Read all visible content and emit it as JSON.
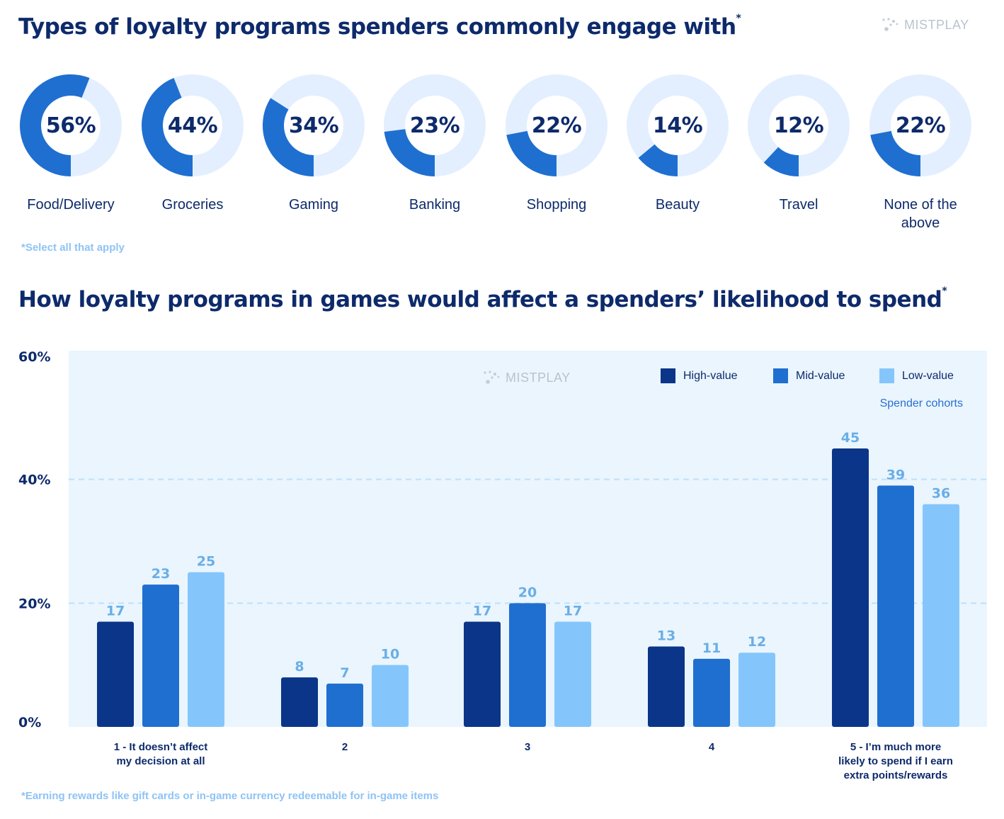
{
  "title_top": "Types of loyalty programs spenders commonly engage with",
  "title_top_mark": "*",
  "logo": "MISTPLAY",
  "colors": {
    "donut_fill": "#1f6fd0",
    "donut_track": "#e3efff",
    "high": "#0b3588",
    "mid": "#1f6fd0",
    "low": "#84c6fb",
    "plot_bg": "#eaf5fe",
    "value_label": "#6aaee6"
  },
  "donuts": [
    {
      "value": 56,
      "display": "56%",
      "label": "Food/Delivery"
    },
    {
      "value": 44,
      "display": "44%",
      "label": "Groceries"
    },
    {
      "value": 34,
      "display": "34%",
      "label": "Gaming"
    },
    {
      "value": 23,
      "display": "23%",
      "label": "Banking"
    },
    {
      "value": 22,
      "display": "22%",
      "label": "Shopping"
    },
    {
      "value": 14,
      "display": "14%",
      "label": "Beauty"
    },
    {
      "value": 12,
      "display": "12%",
      "label": "Travel"
    },
    {
      "value": 22,
      "display": "22%",
      "label": "None of the above"
    }
  ],
  "footnote_top": "*Select all that apply",
  "title_bottom": "How loyalty programs in games would affect a spenders’ likelihood to spend",
  "title_bottom_mark": "*",
  "legend": {
    "items": [
      "High-value",
      "Mid-value",
      "Low-value"
    ],
    "caption": "Spender cohorts"
  },
  "footnote_bottom": "*Earning rewards like gift cards or in-game currency redeemable for in-game items",
  "chart_data": {
    "type": "bar",
    "title": "How loyalty programs in games would affect a spenders’ likelihood to spend",
    "categories": [
      "1 - It doesn’t affect my decision at all",
      "2",
      "3",
      "4",
      "5 - I’m much more likely to spend if I earn extra points/rewards"
    ],
    "series": [
      {
        "name": "High-value",
        "values": [
          17,
          8,
          17,
          13,
          45
        ]
      },
      {
        "name": "Mid-value",
        "values": [
          23,
          7,
          20,
          11,
          39
        ]
      },
      {
        "name": "Low-value",
        "values": [
          25,
          10,
          17,
          12,
          36
        ]
      }
    ],
    "yticks": [
      "0%",
      "20%",
      "40%",
      "60%"
    ],
    "ylim": [
      0,
      60
    ],
    "legend_title": "Spender cohorts",
    "legend_position": "top-right",
    "grid": true
  }
}
